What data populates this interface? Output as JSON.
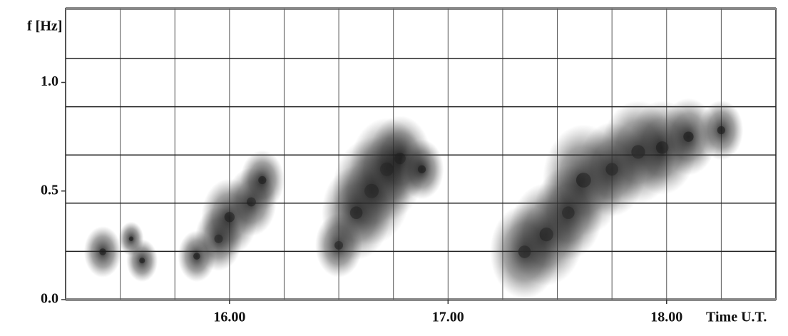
{
  "chart_data": {
    "type": "scatter",
    "ylabel": "f [Hz]",
    "xlabel": "Time U.T.",
    "x": [
      15.42,
      15.55,
      15.6,
      15.85,
      15.95,
      16.0,
      16.1,
      16.15,
      16.5,
      16.58,
      16.65,
      16.72,
      16.78,
      16.88,
      17.35,
      17.45,
      17.55,
      17.62,
      17.75,
      17.87,
      17.98,
      18.1,
      18.25
    ],
    "values": [
      0.22,
      0.28,
      0.18,
      0.2,
      0.28,
      0.38,
      0.45,
      0.55,
      0.25,
      0.4,
      0.5,
      0.6,
      0.65,
      0.6,
      0.22,
      0.3,
      0.4,
      0.55,
      0.6,
      0.68,
      0.7,
      0.75,
      0.78
    ],
    "sizes": [
      1.2,
      0.8,
      1,
      1.2,
      1.5,
      1.8,
      1.6,
      1.4,
      1.5,
      2.2,
      2.5,
      2.4,
      2,
      1.4,
      2.2,
      2.4,
      2.2,
      2.6,
      2.2,
      2.4,
      2.2,
      1.8,
      1.4
    ],
    "color": "#222222",
    "xlim": [
      15.25,
      18.5
    ],
    "xticks": [
      {
        "value": 16,
        "label": "16.00"
      },
      {
        "value": 17,
        "label": "17.00"
      },
      {
        "value": 18,
        "label": "18.00"
      }
    ],
    "xgrid": [
      15.5,
      15.75,
      16,
      16.25,
      16.5,
      16.75,
      17,
      17.25,
      17.5,
      17.75,
      18,
      18.25
    ],
    "ylim": [
      0,
      1.34
    ],
    "yticks": [
      {
        "value": 0,
        "label": "0.0"
      },
      0.5,
      {
        "value": 1,
        "label": "1.0"
      }
    ],
    "ygrid": [
      0.222,
      0.444,
      0.666,
      0.888,
      1.11
    ],
    "grid": true
  }
}
